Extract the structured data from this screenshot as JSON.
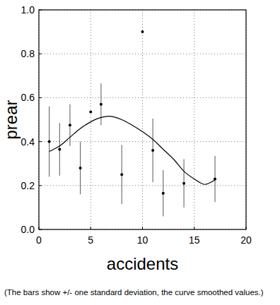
{
  "chart_data": {
    "type": "scatter",
    "x_label": "accidents",
    "y_label": "prear",
    "annotation": "(The bars show +/- one standard deviation, the curve smoothed values.)",
    "xlim": [
      0,
      20
    ],
    "xticks": [
      0,
      5,
      10,
      15,
      20
    ],
    "ylim": [
      0,
      1
    ],
    "yticks": [
      {
        "value": 0,
        "label": "0.0"
      },
      0.2,
      0.4,
      0.6,
      0.8,
      {
        "value": 1,
        "label": "1.0"
      }
    ],
    "grid": true,
    "series": [
      {
        "type": "scatter",
        "marker": "circle",
        "color": "#000000",
        "x": [
          1,
          2,
          3,
          4,
          5,
          6,
          8,
          10,
          11,
          12,
          14,
          17
        ],
        "values": [
          0.4,
          0.365,
          0.475,
          0.28,
          0.535,
          0.57,
          0.25,
          0.9,
          0.36,
          0.165,
          0.21,
          0.23
        ],
        "errors": [
          0.16,
          0.12,
          0.095,
          0.12,
          0,
          0.095,
          0.135,
          0,
          0.145,
          0.105,
          0.11,
          0.105
        ]
      },
      {
        "type": "line",
        "line_style": "solid",
        "color": "#000000",
        "x": [
          1,
          2,
          3,
          4,
          5,
          6,
          7,
          8,
          9,
          10,
          11,
          12,
          13,
          14,
          15,
          16,
          17
        ],
        "values": [
          0.355,
          0.38,
          0.42,
          0.46,
          0.49,
          0.51,
          0.515,
          0.5,
          0.475,
          0.445,
          0.41,
          0.365,
          0.32,
          0.265,
          0.23,
          0.205,
          0.225
        ]
      }
    ]
  }
}
